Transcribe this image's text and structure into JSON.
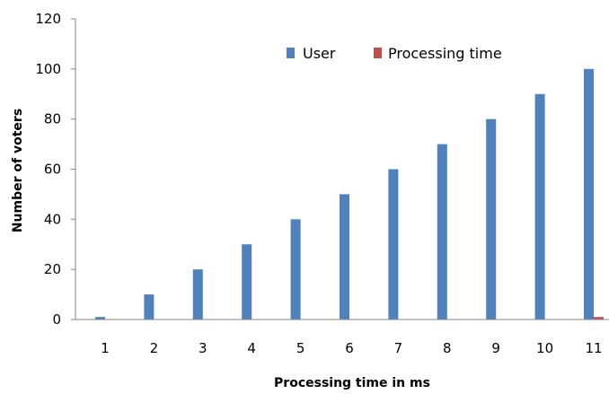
{
  "chart_data": {
    "type": "bar",
    "categories": [
      "1",
      "2",
      "3",
      "4",
      "5",
      "6",
      "7",
      "8",
      "9",
      "10",
      "11"
    ],
    "series": [
      {
        "name": "User",
        "values": [
          1,
          10,
          20,
          30,
          40,
          50,
          60,
          70,
          80,
          90,
          100
        ],
        "color": "#4f81bd"
      },
      {
        "name": "Processing time",
        "values": [
          0,
          0,
          0,
          0,
          0,
          0,
          0,
          0,
          0,
          0,
          1
        ],
        "color": "#c0504d"
      }
    ],
    "title": "",
    "xlabel": "Processing time in ms",
    "ylabel": "Number of voters",
    "ylim": [
      0,
      120
    ],
    "yticks": [
      "0",
      "20",
      "40",
      "60",
      "80",
      "100",
      "120"
    ],
    "grid": false,
    "legend_position": "top"
  }
}
